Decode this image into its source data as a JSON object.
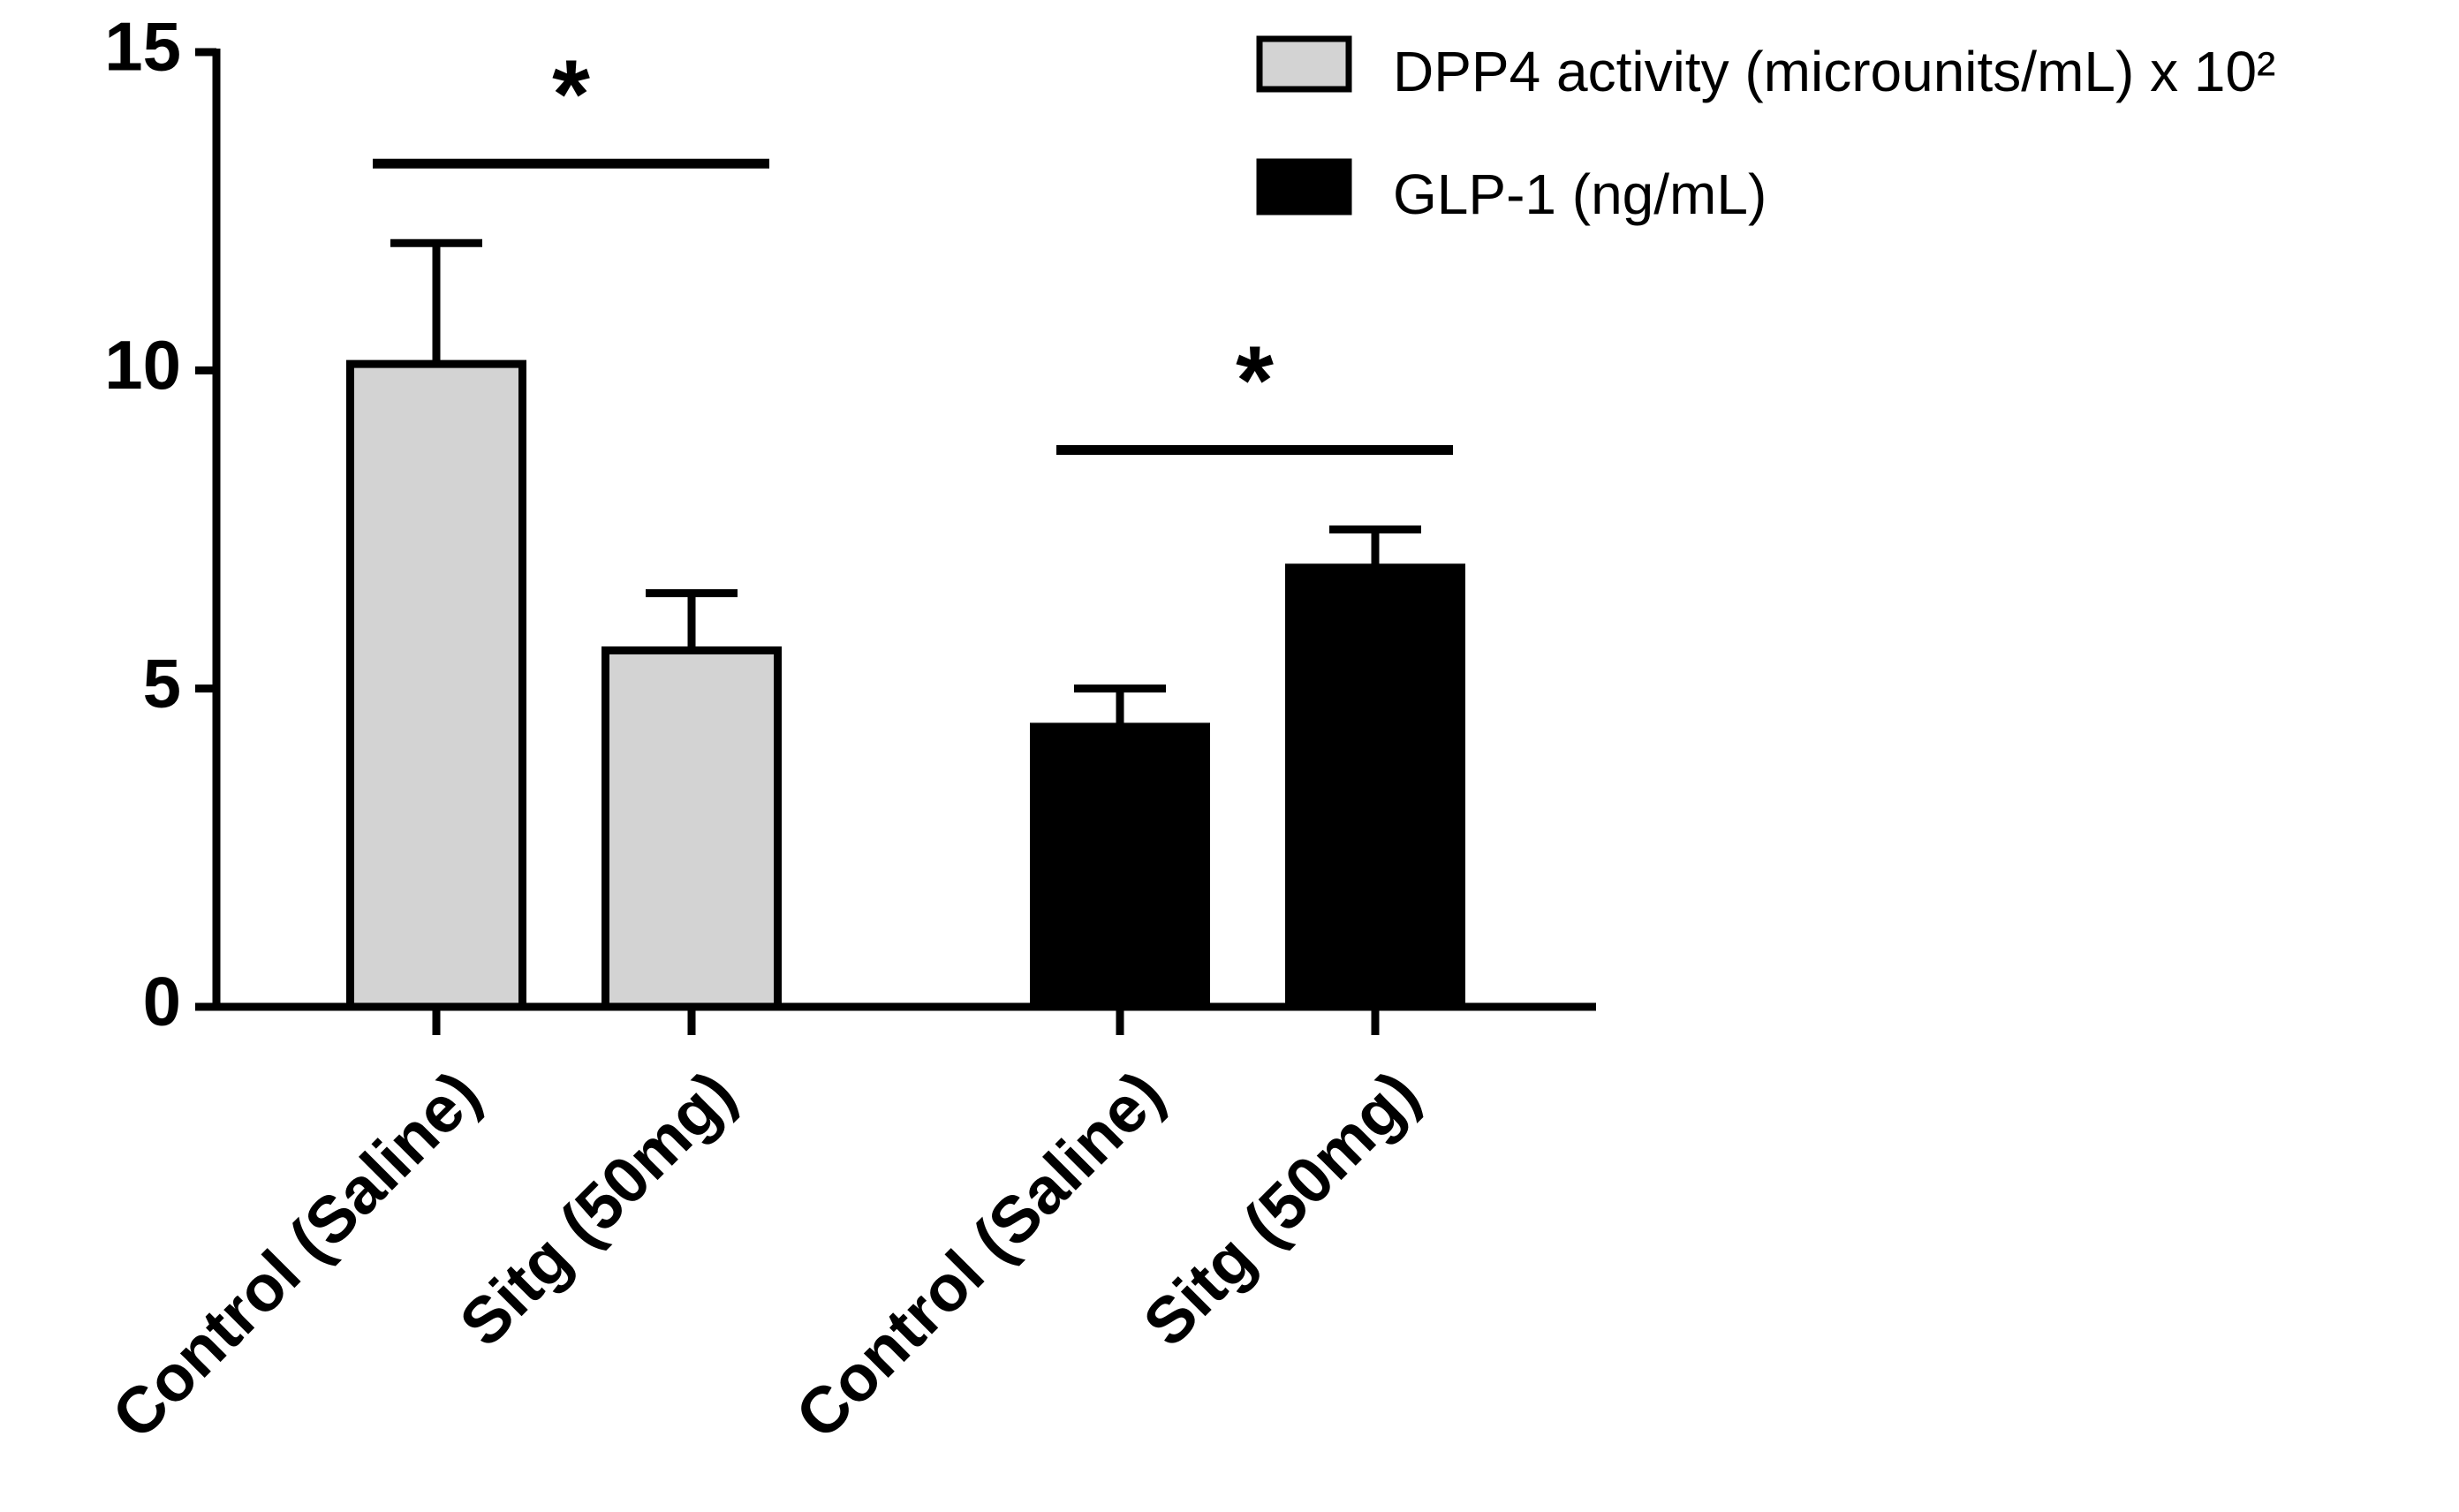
{
  "chart_data": {
    "type": "bar",
    "categories": [
      "Control (Saline)",
      "Sitg (50mg)",
      "Control (Saline)",
      "Sitg (50mg)"
    ],
    "series": [
      {
        "name": "DPP4 activity (microunits/mL) x 10²",
        "color": "#d3d3d3",
        "values": [
          10.1,
          5.6,
          null,
          null
        ],
        "errors": [
          1.9,
          0.9,
          null,
          null
        ],
        "annotation": "*"
      },
      {
        "name": "GLP-1 (ng/mL)",
        "color": "#000000",
        "values": [
          null,
          null,
          4.4,
          6.9
        ],
        "errors": [
          null,
          null,
          0.6,
          0.6
        ],
        "annotation": "*"
      }
    ],
    "ylim": [
      0,
      15
    ],
    "yticks": [
      0,
      5,
      10,
      15
    ],
    "grid": false,
    "legend": "top-right"
  }
}
